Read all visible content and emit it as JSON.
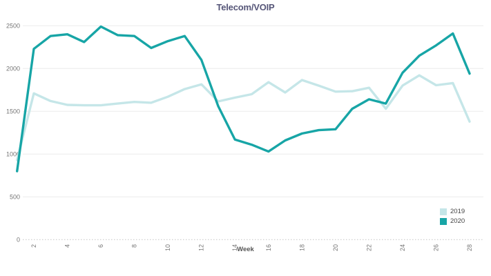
{
  "title": "Telecom/VOIP",
  "colors": {
    "series_2019": "#c5e6e8",
    "series_2020": "#17a5a6",
    "title_text": "#565678",
    "axis_text": "#757575",
    "gridline": "#ececec",
    "zero_line": "#c3c3c3"
  },
  "chart_data": {
    "type": "line",
    "title": "Telecom/VOIP",
    "xlabel": "Week",
    "ylabel": "",
    "x": [
      1,
      2,
      3,
      4,
      5,
      6,
      7,
      8,
      9,
      10,
      11,
      12,
      13,
      14,
      15,
      16,
      17,
      18,
      19,
      20,
      21,
      22,
      23,
      24,
      25,
      26,
      27,
      28
    ],
    "x_ticks": [
      2,
      4,
      6,
      8,
      10,
      12,
      14,
      16,
      18,
      20,
      22,
      24,
      26,
      28
    ],
    "y_ticks": [
      0,
      500,
      1000,
      1500,
      2000,
      2500
    ],
    "ylim": [
      0,
      2500
    ],
    "grid": "horizontal",
    "legend_position": "right",
    "series": [
      {
        "name": "2019",
        "color": "#c5e6e8",
        "values": [
          930,
          1710,
          1620,
          1575,
          1570,
          1570,
          1590,
          1610,
          1600,
          1670,
          1760,
          1815,
          1615,
          1660,
          1700,
          1840,
          1720,
          1865,
          1800,
          1730,
          1735,
          1775,
          1530,
          1800,
          1920,
          1805,
          1830,
          1380
        ]
      },
      {
        "name": "2020",
        "color": "#17a5a6",
        "values": [
          800,
          2230,
          2380,
          2400,
          2310,
          2490,
          2390,
          2380,
          2240,
          2320,
          2380,
          2100,
          1560,
          1170,
          1110,
          1030,
          1160,
          1240,
          1280,
          1290,
          1530,
          1640,
          1590,
          1950,
          2150,
          2270,
          2410,
          1940
        ]
      }
    ]
  },
  "legend": {
    "items": [
      {
        "label": "2019",
        "color": "#c5e6e8"
      },
      {
        "label": "2020",
        "color": "#17a5a6"
      }
    ]
  }
}
